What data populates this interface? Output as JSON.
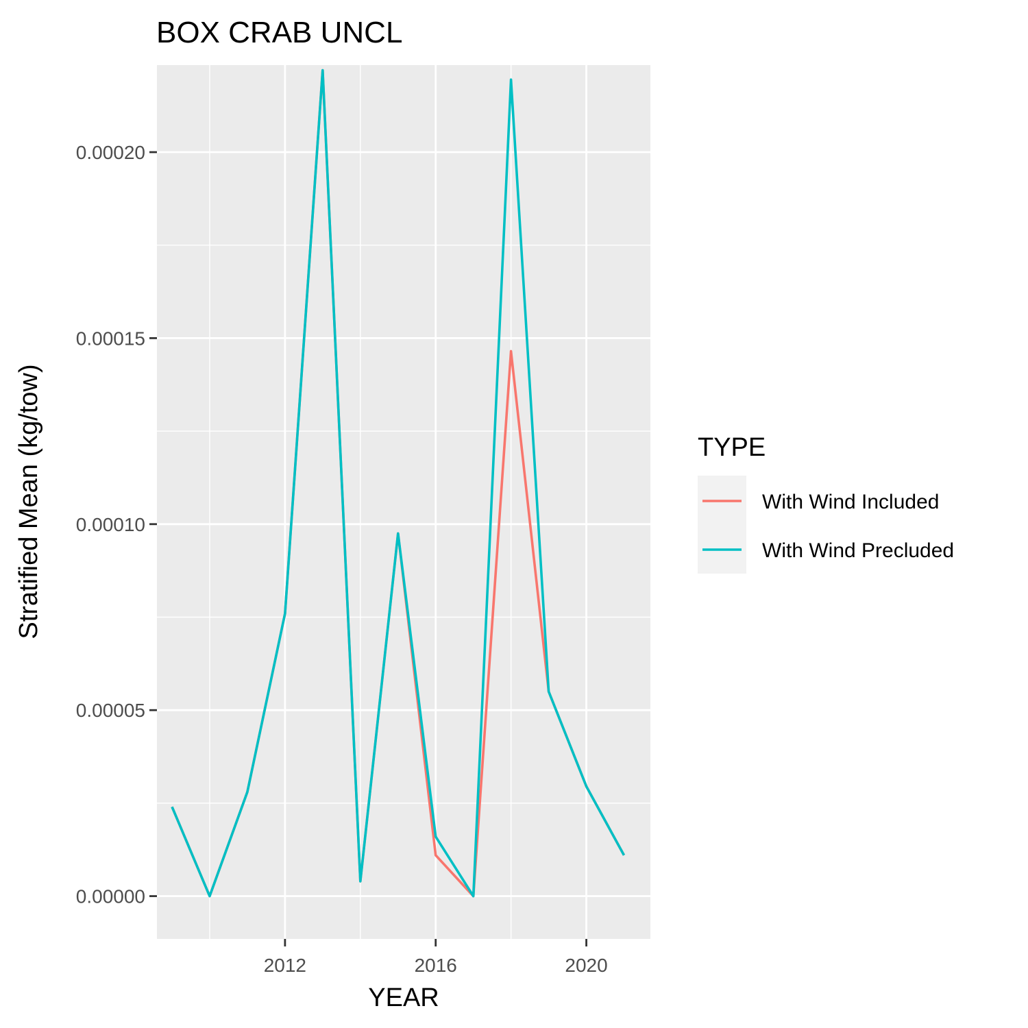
{
  "chart_data": {
    "type": "line",
    "title": "BOX CRAB UNCL",
    "xlabel": "YEAR",
    "ylabel": "Stratified Mean (kg/tow)",
    "xlim": [
      2008.6,
      2021.7
    ],
    "ylim": [
      -1.15e-05,
      0.0002234
    ],
    "x_ticks": [
      2012,
      2016,
      2020
    ],
    "x_tick_labels": [
      "2012",
      "2016",
      "2020"
    ],
    "x_minor_ticks": [
      2010,
      2014,
      2018
    ],
    "y_ticks": [
      0,
      5e-05,
      0.0001,
      0.00015,
      0.0002
    ],
    "y_tick_labels": [
      "0.00000",
      "0.00005",
      "0.00010",
      "0.00015",
      "0.00020"
    ],
    "y_minor_ticks": [
      2.5e-05,
      7.5e-05,
      0.000125,
      0.000175,
      0.000225
    ],
    "grid": true,
    "legend_title": "TYPE",
    "legend_position": "right",
    "x": [
      2009,
      2010,
      2011,
      2012,
      2013,
      2014,
      2015,
      2016,
      2017,
      2018,
      2019,
      2020,
      2021
    ],
    "series": [
      {
        "name": "With Wind Included",
        "color": "#F8766D",
        "values": [
          2.4e-05,
          0.0,
          2.8e-05,
          7.6e-05,
          0.000222,
          4e-06,
          9.75e-05,
          1.1e-05,
          0.0,
          0.0001465,
          5.5e-05,
          2.95e-05,
          1.1e-05
        ]
      },
      {
        "name": "With Wind Precluded",
        "color": "#00BFC4",
        "values": [
          2.4e-05,
          0.0,
          2.8e-05,
          7.6e-05,
          0.000222,
          4e-06,
          9.75e-05,
          1.6e-05,
          0.0,
          0.0002195,
          5.5e-05,
          2.95e-05,
          1.1e-05
        ]
      }
    ]
  }
}
